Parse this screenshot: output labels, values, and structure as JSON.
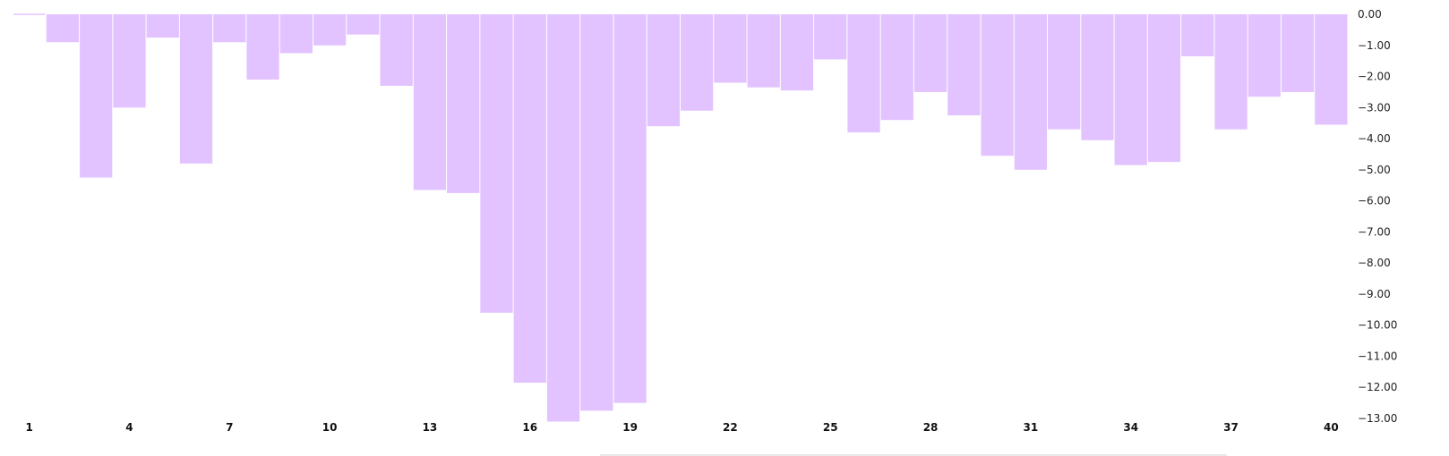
{
  "chart_data": {
    "type": "bar",
    "bar_color": "#e2c3ff",
    "x": [
      1,
      2,
      3,
      4,
      5,
      6,
      7,
      8,
      9,
      10,
      11,
      12,
      13,
      14,
      15,
      16,
      17,
      18,
      19,
      20,
      21,
      22,
      23,
      24,
      25,
      26,
      27,
      28,
      29,
      30,
      31,
      32,
      33,
      34,
      35,
      36,
      37,
      38,
      39,
      40
    ],
    "values": [
      0.0,
      -0.9,
      -5.25,
      -3.0,
      -0.75,
      -4.8,
      -0.9,
      -2.1,
      -1.25,
      -1.0,
      -0.65,
      -2.3,
      -5.65,
      -5.75,
      -9.6,
      -11.85,
      -13.1,
      -12.75,
      -12.5,
      -3.6,
      -3.1,
      -2.2,
      -2.35,
      -2.45,
      -1.45,
      -3.8,
      -3.4,
      -2.5,
      -3.25,
      -4.55,
      -5.0,
      -3.7,
      -4.05,
      -4.85,
      -4.75,
      -1.35,
      -3.7,
      -2.65,
      -2.5,
      -3.55
    ],
    "x_tick_labels": [
      "1",
      "4",
      "7",
      "10",
      "13",
      "16",
      "19",
      "22",
      "25",
      "28",
      "31",
      "34",
      "37",
      "40"
    ],
    "y_tick_labels": [
      "0.00",
      "−1.00",
      "−2.00",
      "−3.00",
      "−4.00",
      "−5.00",
      "−6.00",
      "−7.00",
      "−8.00",
      "−9.00",
      "−10.00",
      "−11.00",
      "−12.00",
      "−13.00"
    ],
    "ylim": [
      -13,
      0
    ],
    "y_axis_position": "right",
    "grid": false,
    "legend": "none"
  }
}
